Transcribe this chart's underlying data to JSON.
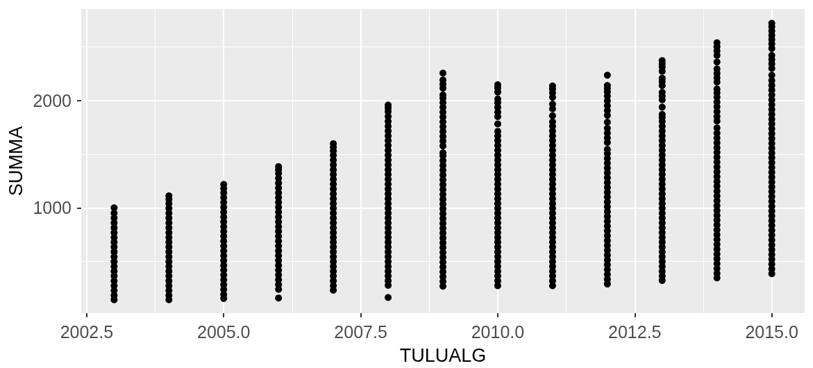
{
  "chart_data": {
    "type": "scatter",
    "xlabel": "TULUALG",
    "ylabel": "SUMMA",
    "marker": "circle",
    "grid": true,
    "xlim": [
      2002.4,
      2015.6
    ],
    "xticks": [
      {
        "value": 2002.5,
        "label": "2002.5"
      },
      {
        "value": 2005,
        "label": "2005.0"
      },
      {
        "value": 2007.5,
        "label": "2007.5"
      },
      {
        "value": 2010,
        "label": "2010.0"
      },
      {
        "value": 2012.5,
        "label": "2012.5"
      },
      {
        "value": 2015,
        "label": "2015.0"
      }
    ],
    "ylim": [
      20,
      2850
    ],
    "yticks": [
      1000,
      2000
    ],
    "series": [
      {
        "color": "#000000",
        "x": [
          2003,
          2003,
          2003,
          2003,
          2003,
          2003,
          2003,
          2003,
          2003,
          2003,
          2003,
          2003,
          2003,
          2003,
          2003,
          2003,
          2003,
          2003,
          2003,
          2003
        ],
        "values": [
          145,
          185,
          230,
          275,
          320,
          365,
          410,
          455,
          500,
          545,
          590,
          635,
          680,
          725,
          770,
          815,
          860,
          905,
          950,
          1000
        ]
      },
      {
        "color": "#000000",
        "x": [
          2004,
          2004,
          2004,
          2004,
          2004,
          2004,
          2004,
          2004,
          2004,
          2004,
          2004,
          2004,
          2004,
          2004,
          2004,
          2004,
          2004,
          2004,
          2004,
          2004,
          2004,
          2004,
          2004
        ],
        "values": [
          145,
          185,
          230,
          275,
          320,
          365,
          410,
          455,
          500,
          545,
          590,
          635,
          680,
          725,
          770,
          815,
          860,
          905,
          950,
          995,
          1040,
          1080,
          1112
        ]
      },
      {
        "color": "#000000",
        "x": [
          2005,
          2005,
          2005,
          2005,
          2005,
          2005,
          2005,
          2005,
          2005,
          2005,
          2005,
          2005,
          2005,
          2005,
          2005,
          2005,
          2005,
          2005,
          2005,
          2005,
          2005,
          2005,
          2005,
          2005,
          2005
        ],
        "values": [
          157,
          195,
          240,
          285,
          330,
          375,
          420,
          465,
          510,
          555,
          600,
          645,
          690,
          735,
          780,
          825,
          870,
          915,
          960,
          1005,
          1050,
          1095,
          1140,
          1180,
          1218
        ]
      },
      {
        "color": "#000000",
        "x": [
          2006,
          2006,
          2006,
          2006,
          2006,
          2006,
          2006,
          2006,
          2006,
          2006,
          2006,
          2006,
          2006,
          2006,
          2006,
          2006,
          2006,
          2006,
          2006,
          2006,
          2006,
          2006,
          2006,
          2006,
          2006,
          2006,
          2006,
          2006
        ],
        "values": [
          161,
          242,
          285,
          330,
          375,
          420,
          465,
          510,
          555,
          600,
          645,
          690,
          735,
          780,
          825,
          870,
          915,
          960,
          1005,
          1050,
          1095,
          1140,
          1185,
          1230,
          1275,
          1320,
          1355,
          1384
        ]
      },
      {
        "color": "#000000",
        "x": [
          2007,
          2007,
          2007,
          2007,
          2007,
          2007,
          2007,
          2007,
          2007,
          2007,
          2007,
          2007,
          2007,
          2007,
          2007,
          2007,
          2007,
          2007,
          2007,
          2007,
          2007,
          2007,
          2007,
          2007,
          2007,
          2007,
          2007,
          2007,
          2007,
          2007,
          2007,
          2007
        ],
        "values": [
          234,
          275,
          320,
          365,
          410,
          455,
          500,
          545,
          590,
          635,
          680,
          725,
          770,
          815,
          860,
          905,
          950,
          995,
          1040,
          1085,
          1130,
          1175,
          1220,
          1265,
          1310,
          1355,
          1400,
          1445,
          1490,
          1530,
          1565,
          1597
        ]
      },
      {
        "color": "#000000",
        "x": [
          2008,
          2008,
          2008,
          2008,
          2008,
          2008,
          2008,
          2008,
          2008,
          2008,
          2008,
          2008,
          2008,
          2008,
          2008,
          2008,
          2008,
          2008,
          2008,
          2008,
          2008,
          2008,
          2008,
          2008,
          2008,
          2008,
          2008,
          2008,
          2008,
          2008,
          2008,
          2008,
          2008,
          2008,
          2008,
          2008,
          2008,
          2008,
          2008,
          2008
        ],
        "values": [
          166,
          279,
          320,
          365,
          410,
          455,
          500,
          545,
          590,
          635,
          680,
          725,
          770,
          815,
          860,
          905,
          950,
          995,
          1040,
          1085,
          1130,
          1175,
          1220,
          1265,
          1310,
          1355,
          1400,
          1445,
          1490,
          1535,
          1580,
          1625,
          1670,
          1715,
          1760,
          1805,
          1850,
          1895,
          1930,
          1956
        ]
      },
      {
        "color": "#000000",
        "x": [
          2009,
          2009,
          2009,
          2009,
          2009,
          2009,
          2009,
          2009,
          2009,
          2009,
          2009,
          2009,
          2009,
          2009,
          2009,
          2009,
          2009,
          2009,
          2009,
          2009,
          2009,
          2009,
          2009,
          2009,
          2009,
          2009,
          2009,
          2009,
          2009,
          2009,
          2009,
          2009,
          2009,
          2009,
          2009,
          2009,
          2009,
          2009,
          2009,
          2009,
          2009,
          2009,
          2009,
          2009,
          2009
        ],
        "values": [
          271,
          315,
          360,
          405,
          450,
          495,
          540,
          585,
          630,
          675,
          720,
          765,
          810,
          855,
          900,
          945,
          990,
          1035,
          1080,
          1125,
          1170,
          1215,
          1260,
          1305,
          1350,
          1395,
          1440,
          1485,
          1512,
          1576,
          1620,
          1665,
          1710,
          1755,
          1800,
          1845,
          1890,
          1935,
          1980,
          2020,
          2050,
          2114,
          2150,
          2190,
          2254
        ]
      },
      {
        "color": "#000000",
        "x": [
          2010,
          2010,
          2010,
          2010,
          2010,
          2010,
          2010,
          2010,
          2010,
          2010,
          2010,
          2010,
          2010,
          2010,
          2010,
          2010,
          2010,
          2010,
          2010,
          2010,
          2010,
          2010,
          2010,
          2010,
          2010,
          2010,
          2010,
          2010,
          2010,
          2010,
          2010,
          2010,
          2010,
          2010,
          2010,
          2010,
          2010,
          2010,
          2010,
          2010,
          2010,
          2010
        ],
        "values": [
          276,
          320,
          365,
          410,
          455,
          500,
          545,
          590,
          635,
          680,
          725,
          770,
          815,
          860,
          905,
          950,
          995,
          1040,
          1085,
          1130,
          1175,
          1220,
          1265,
          1310,
          1355,
          1400,
          1445,
          1490,
          1535,
          1580,
          1625,
          1670,
          1712,
          1781,
          1849,
          1890,
          1935,
          1980,
          2013,
          2077,
          2115,
          2146
        ]
      },
      {
        "color": "#000000",
        "x": [
          2011,
          2011,
          2011,
          2011,
          2011,
          2011,
          2011,
          2011,
          2011,
          2011,
          2011,
          2011,
          2011,
          2011,
          2011,
          2011,
          2011,
          2011,
          2011,
          2011,
          2011,
          2011,
          2011,
          2011,
          2011,
          2011,
          2011,
          2011,
          2011,
          2011,
          2011,
          2011,
          2011,
          2011,
          2011,
          2011,
          2011,
          2011,
          2011,
          2011,
          2011,
          2011
        ],
        "values": [
          276,
          320,
          365,
          410,
          455,
          500,
          545,
          590,
          635,
          680,
          725,
          770,
          815,
          860,
          905,
          950,
          995,
          1040,
          1085,
          1130,
          1175,
          1220,
          1265,
          1310,
          1355,
          1400,
          1445,
          1490,
          1535,
          1580,
          1625,
          1670,
          1715,
          1760,
          1800,
          1857,
          1921,
          1965,
          2029,
          2070,
          2105,
          2134
        ]
      },
      {
        "color": "#000000",
        "x": [
          2012,
          2012,
          2012,
          2012,
          2012,
          2012,
          2012,
          2012,
          2012,
          2012,
          2012,
          2012,
          2012,
          2012,
          2012,
          2012,
          2012,
          2012,
          2012,
          2012,
          2012,
          2012,
          2012,
          2012,
          2012,
          2012,
          2012,
          2012,
          2012,
          2012,
          2012,
          2012,
          2012,
          2012,
          2012,
          2012,
          2012,
          2012,
          2012,
          2012,
          2012,
          2012,
          2012
        ],
        "values": [
          291,
          335,
          380,
          425,
          470,
          515,
          560,
          605,
          650,
          695,
          740,
          785,
          830,
          875,
          920,
          965,
          1010,
          1055,
          1100,
          1145,
          1190,
          1235,
          1280,
          1325,
          1370,
          1415,
          1460,
          1505,
          1544,
          1608,
          1650,
          1695,
          1740,
          1797,
          1861,
          1905,
          1950,
          1995,
          2040,
          2080,
          2110,
          2139,
          2234
        ]
      },
      {
        "color": "#000000",
        "x": [
          2013,
          2013,
          2013,
          2013,
          2013,
          2013,
          2013,
          2013,
          2013,
          2013,
          2013,
          2013,
          2013,
          2013,
          2013,
          2013,
          2013,
          2013,
          2013,
          2013,
          2013,
          2013,
          2013,
          2013,
          2013,
          2013,
          2013,
          2013,
          2013,
          2013,
          2013,
          2013,
          2013,
          2013,
          2013,
          2013,
          2013,
          2013,
          2013,
          2013,
          2013,
          2013,
          2013,
          2013,
          2013,
          2013,
          2013
        ],
        "values": [
          324,
          365,
          410,
          455,
          500,
          545,
          590,
          635,
          680,
          725,
          770,
          815,
          860,
          905,
          950,
          995,
          1040,
          1085,
          1130,
          1175,
          1220,
          1265,
          1310,
          1355,
          1400,
          1445,
          1490,
          1535,
          1580,
          1625,
          1670,
          1715,
          1760,
          1805,
          1840,
          1869,
          1937,
          2005,
          2040,
          2074,
          2138,
          2175,
          2206,
          2270,
          2310,
          2340,
          2370
        ]
      },
      {
        "color": "#000000",
        "x": [
          2014,
          2014,
          2014,
          2014,
          2014,
          2014,
          2014,
          2014,
          2014,
          2014,
          2014,
          2014,
          2014,
          2014,
          2014,
          2014,
          2014,
          2014,
          2014,
          2014,
          2014,
          2014,
          2014,
          2014,
          2014,
          2014,
          2014,
          2014,
          2014,
          2014,
          2014,
          2014,
          2014,
          2014,
          2014,
          2014,
          2014,
          2014,
          2014,
          2014,
          2014,
          2014,
          2014,
          2014,
          2014,
          2014,
          2014,
          2014,
          2014
        ],
        "values": [
          348,
          390,
          435,
          480,
          525,
          570,
          615,
          660,
          705,
          750,
          795,
          840,
          885,
          930,
          975,
          1020,
          1065,
          1110,
          1155,
          1200,
          1245,
          1290,
          1335,
          1380,
          1425,
          1470,
          1515,
          1560,
          1605,
          1650,
          1695,
          1744,
          1808,
          1850,
          1895,
          1940,
          1985,
          2030,
          2070,
          2106,
          2170,
          2210,
          2250,
          2293,
          2357,
          2419,
          2460,
          2500,
          2536
        ]
      },
      {
        "color": "#000000",
        "x": [
          2015,
          2015,
          2015,
          2015,
          2015,
          2015,
          2015,
          2015,
          2015,
          2015,
          2015,
          2015,
          2015,
          2015,
          2015,
          2015,
          2015,
          2015,
          2015,
          2015,
          2015,
          2015,
          2015,
          2015,
          2015,
          2015,
          2015,
          2015,
          2015,
          2015,
          2015,
          2015,
          2015,
          2015,
          2015,
          2015,
          2015,
          2015,
          2015,
          2015,
          2015,
          2015,
          2015,
          2015,
          2015,
          2015,
          2015,
          2015,
          2015,
          2015,
          2015,
          2015,
          2015
        ],
        "values": [
          387,
          430,
          475,
          520,
          565,
          610,
          655,
          700,
          745,
          790,
          835,
          880,
          925,
          970,
          1015,
          1060,
          1105,
          1150,
          1195,
          1240,
          1285,
          1330,
          1375,
          1420,
          1465,
          1510,
          1555,
          1600,
          1645,
          1690,
          1735,
          1780,
          1825,
          1870,
          1915,
          1960,
          2005,
          2050,
          2095,
          2140,
          2185,
          2234,
          2298,
          2340,
          2380,
          2419,
          2483,
          2525,
          2565,
          2605,
          2645,
          2685,
          2717
        ]
      }
    ]
  }
}
